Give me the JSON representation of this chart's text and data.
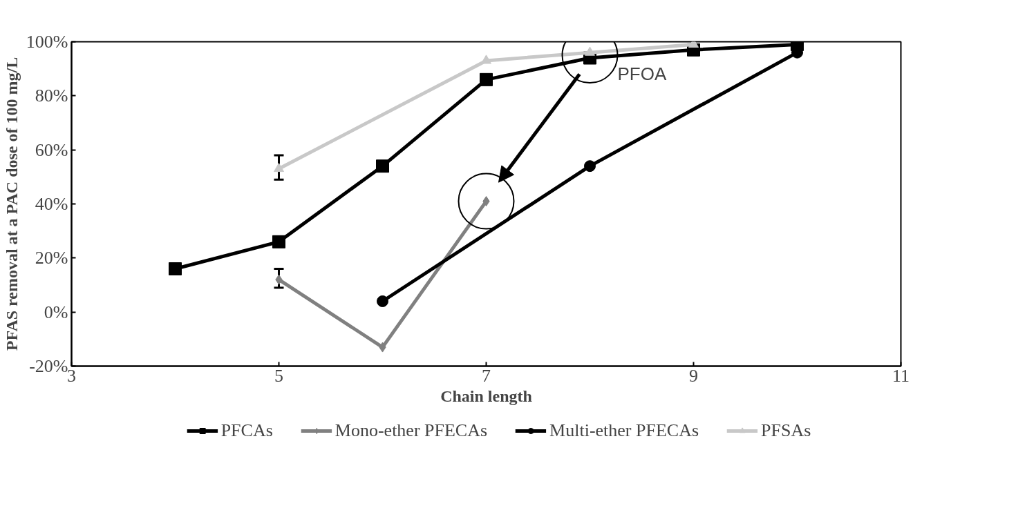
{
  "chart_data": {
    "type": "line",
    "xlabel": "Chain length",
    "ylabel": "PFAS removal at a PAC dose of 100 mg/L",
    "xlim": [
      3,
      11
    ],
    "xticks": [
      3,
      5,
      7,
      9,
      11
    ],
    "ylim": [
      -20,
      100
    ],
    "yticks": [
      {
        "value": -20,
        "label": "-20%"
      },
      {
        "value": 0,
        "label": "0%"
      },
      {
        "value": 20,
        "label": "20%"
      },
      {
        "value": 40,
        "label": "40%"
      },
      {
        "value": 60,
        "label": "60%"
      },
      {
        "value": 80,
        "label": "80%"
      },
      {
        "value": 100,
        "label": "100%"
      }
    ],
    "grid": false,
    "legend": "bottom",
    "series": [
      {
        "name": "PFCAs",
        "color": "#000000",
        "marker": "square",
        "x": [
          4,
          5,
          6,
          7,
          8,
          9,
          10
        ],
        "values": [
          16,
          26,
          54,
          86,
          94,
          97,
          99
        ]
      },
      {
        "name": "Mono-ether PFECAs",
        "color": "#808080",
        "marker": "diamond",
        "x": [
          5,
          6,
          7
        ],
        "values": [
          12,
          -13,
          41
        ],
        "errors": [
          [
            9,
            16
          ],
          null,
          null
        ]
      },
      {
        "name": "Multi-ether PFECAs",
        "color": "#000000",
        "marker": "circle",
        "x": [
          6,
          8,
          10
        ],
        "values": [
          4,
          54,
          96
        ]
      },
      {
        "name": "PFSAs",
        "color": "#c8c8c8",
        "marker": "triangle",
        "x": [
          5,
          7,
          8,
          9
        ],
        "values": [
          53,
          93,
          96,
          99
        ],
        "errors": [
          [
            49,
            58
          ],
          null,
          null,
          null
        ]
      }
    ],
    "annotations": [
      {
        "text": "PFOA",
        "x": 8,
        "y": 95
      }
    ]
  }
}
